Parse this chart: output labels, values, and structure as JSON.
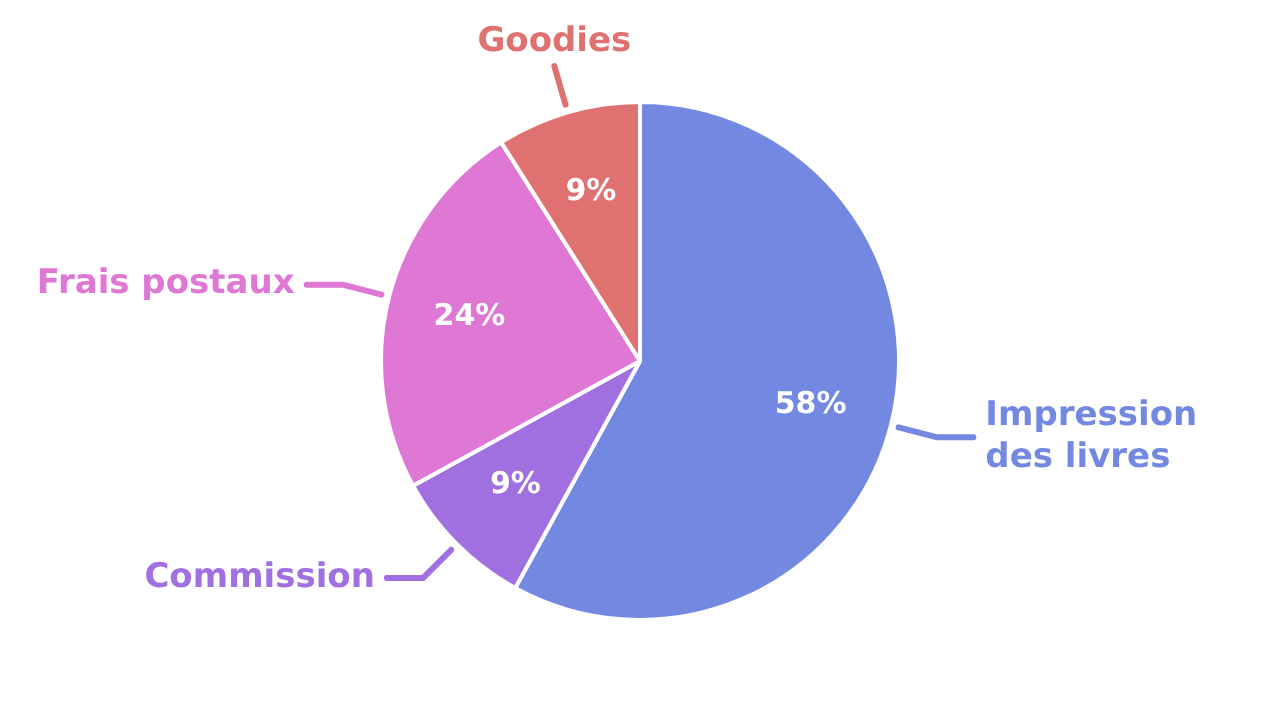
{
  "chart_data": {
    "type": "pie",
    "categories": [
      "Impression des livres",
      "Commission",
      "Frais postaux",
      "Goodies"
    ],
    "values": [
      58,
      9,
      24,
      9
    ],
    "colors": [
      "#7389e1",
      "#a070e1",
      "#df77d5",
      "#e07171"
    ],
    "value_labels": [
      "58%",
      "9%",
      "24%",
      "9%"
    ],
    "legend": false
  }
}
